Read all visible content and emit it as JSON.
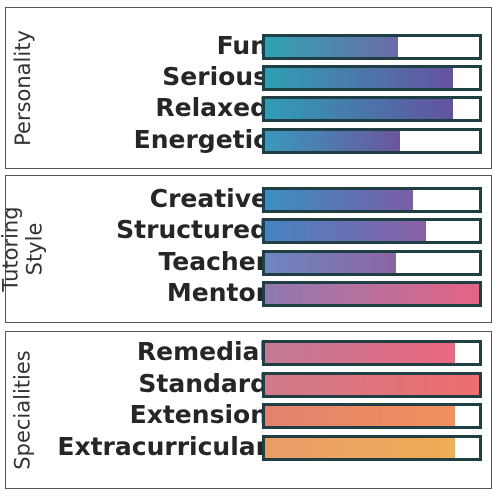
{
  "colors": {
    "frame": "#555555",
    "bar_border": "#1f3f44",
    "label_text": "#262626"
  },
  "sections": [
    {
      "title_lines": [
        "Personality"
      ],
      "rows": [
        {
          "label": "Fun",
          "level": 0.62,
          "grad": [
            "#2fa3b3",
            "#6e6aa8"
          ]
        },
        {
          "label": "Serious",
          "level": 0.88,
          "grad": [
            "#2f9fb5",
            "#6652a0"
          ]
        },
        {
          "label": "Relaxed",
          "level": 0.88,
          "grad": [
            "#2f9db6",
            "#63529e"
          ]
        },
        {
          "label": "Energetic",
          "level": 0.63,
          "grad": [
            "#3a98bc",
            "#6a569e"
          ]
        }
      ]
    },
    {
      "title_lines": [
        "Tutoring",
        "Style"
      ],
      "rows": [
        {
          "label": "Creative",
          "level": 0.69,
          "grad": [
            "#3a8fc2",
            "#7a5da8"
          ]
        },
        {
          "label": "Structured",
          "level": 0.75,
          "grad": [
            "#4783c2",
            "#8a60a8"
          ]
        },
        {
          "label": "Teacher",
          "level": 0.61,
          "grad": [
            "#6d86c0",
            "#8c65a3"
          ]
        },
        {
          "label": "Mentor",
          "level": 1.0,
          "grad": [
            "#8e7ab0",
            "#e56486"
          ]
        }
      ]
    },
    {
      "title_lines": [
        "Specialities"
      ],
      "rows": [
        {
          "label": "Remedial",
          "level": 0.89,
          "grad": [
            "#c27a96",
            "#ea6880"
          ]
        },
        {
          "label": "Standard",
          "level": 1.0,
          "grad": [
            "#cf7a8a",
            "#ee6e6e"
          ]
        },
        {
          "label": "Extension",
          "level": 0.89,
          "grad": [
            "#e2826e",
            "#f0925c"
          ]
        },
        {
          "label": "Extracurricular",
          "level": 0.89,
          "grad": [
            "#e89c68",
            "#f0ae56"
          ]
        }
      ]
    }
  ]
}
